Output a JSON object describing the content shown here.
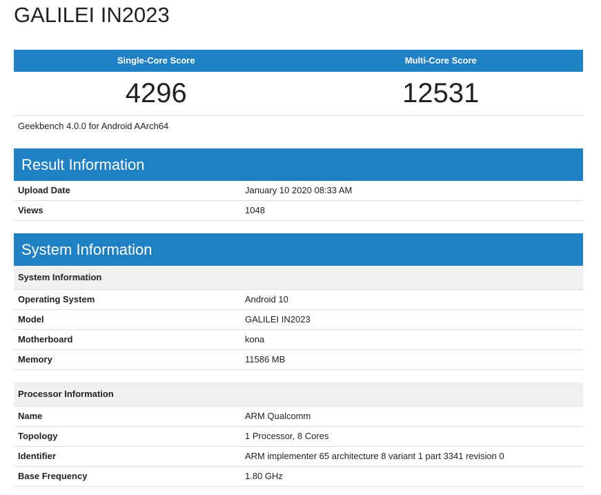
{
  "title": "GALILEI IN2023",
  "scores": [
    {
      "label": "Single-Core Score",
      "value": 4296
    },
    {
      "label": "Multi-Core Score",
      "value": 12531
    }
  ],
  "version": "Geekbench 4.0.0 for Android AArch64",
  "sections": [
    {
      "title": "Result Information",
      "groups": [
        {
          "rows": [
            [
              "Upload Date",
              "January 10 2020 08:33 AM"
            ],
            [
              "Views",
              1048
            ]
          ]
        }
      ]
    },
    {
      "title": "System Information",
      "groups": [
        {
          "title": "System Information",
          "rows": [
            [
              "Operating System",
              "Android 10"
            ],
            [
              "Model",
              "GALILEI IN2023"
            ],
            [
              "Motherboard",
              "kona"
            ],
            [
              "Memory",
              "11586 MB"
            ]
          ]
        },
        {
          "title": "Processor Information",
          "rows": [
            [
              "Name",
              "ARM Qualcomm"
            ],
            [
              "Topology",
              "1 Processor, 8 Cores"
            ],
            [
              "Identifier",
              "ARM implementer 65 architecture 8 variant 1 part 3341 revision 0"
            ],
            [
              "Base Frequency",
              "1.80 GHz"
            ]
          ]
        }
      ]
    }
  ]
}
